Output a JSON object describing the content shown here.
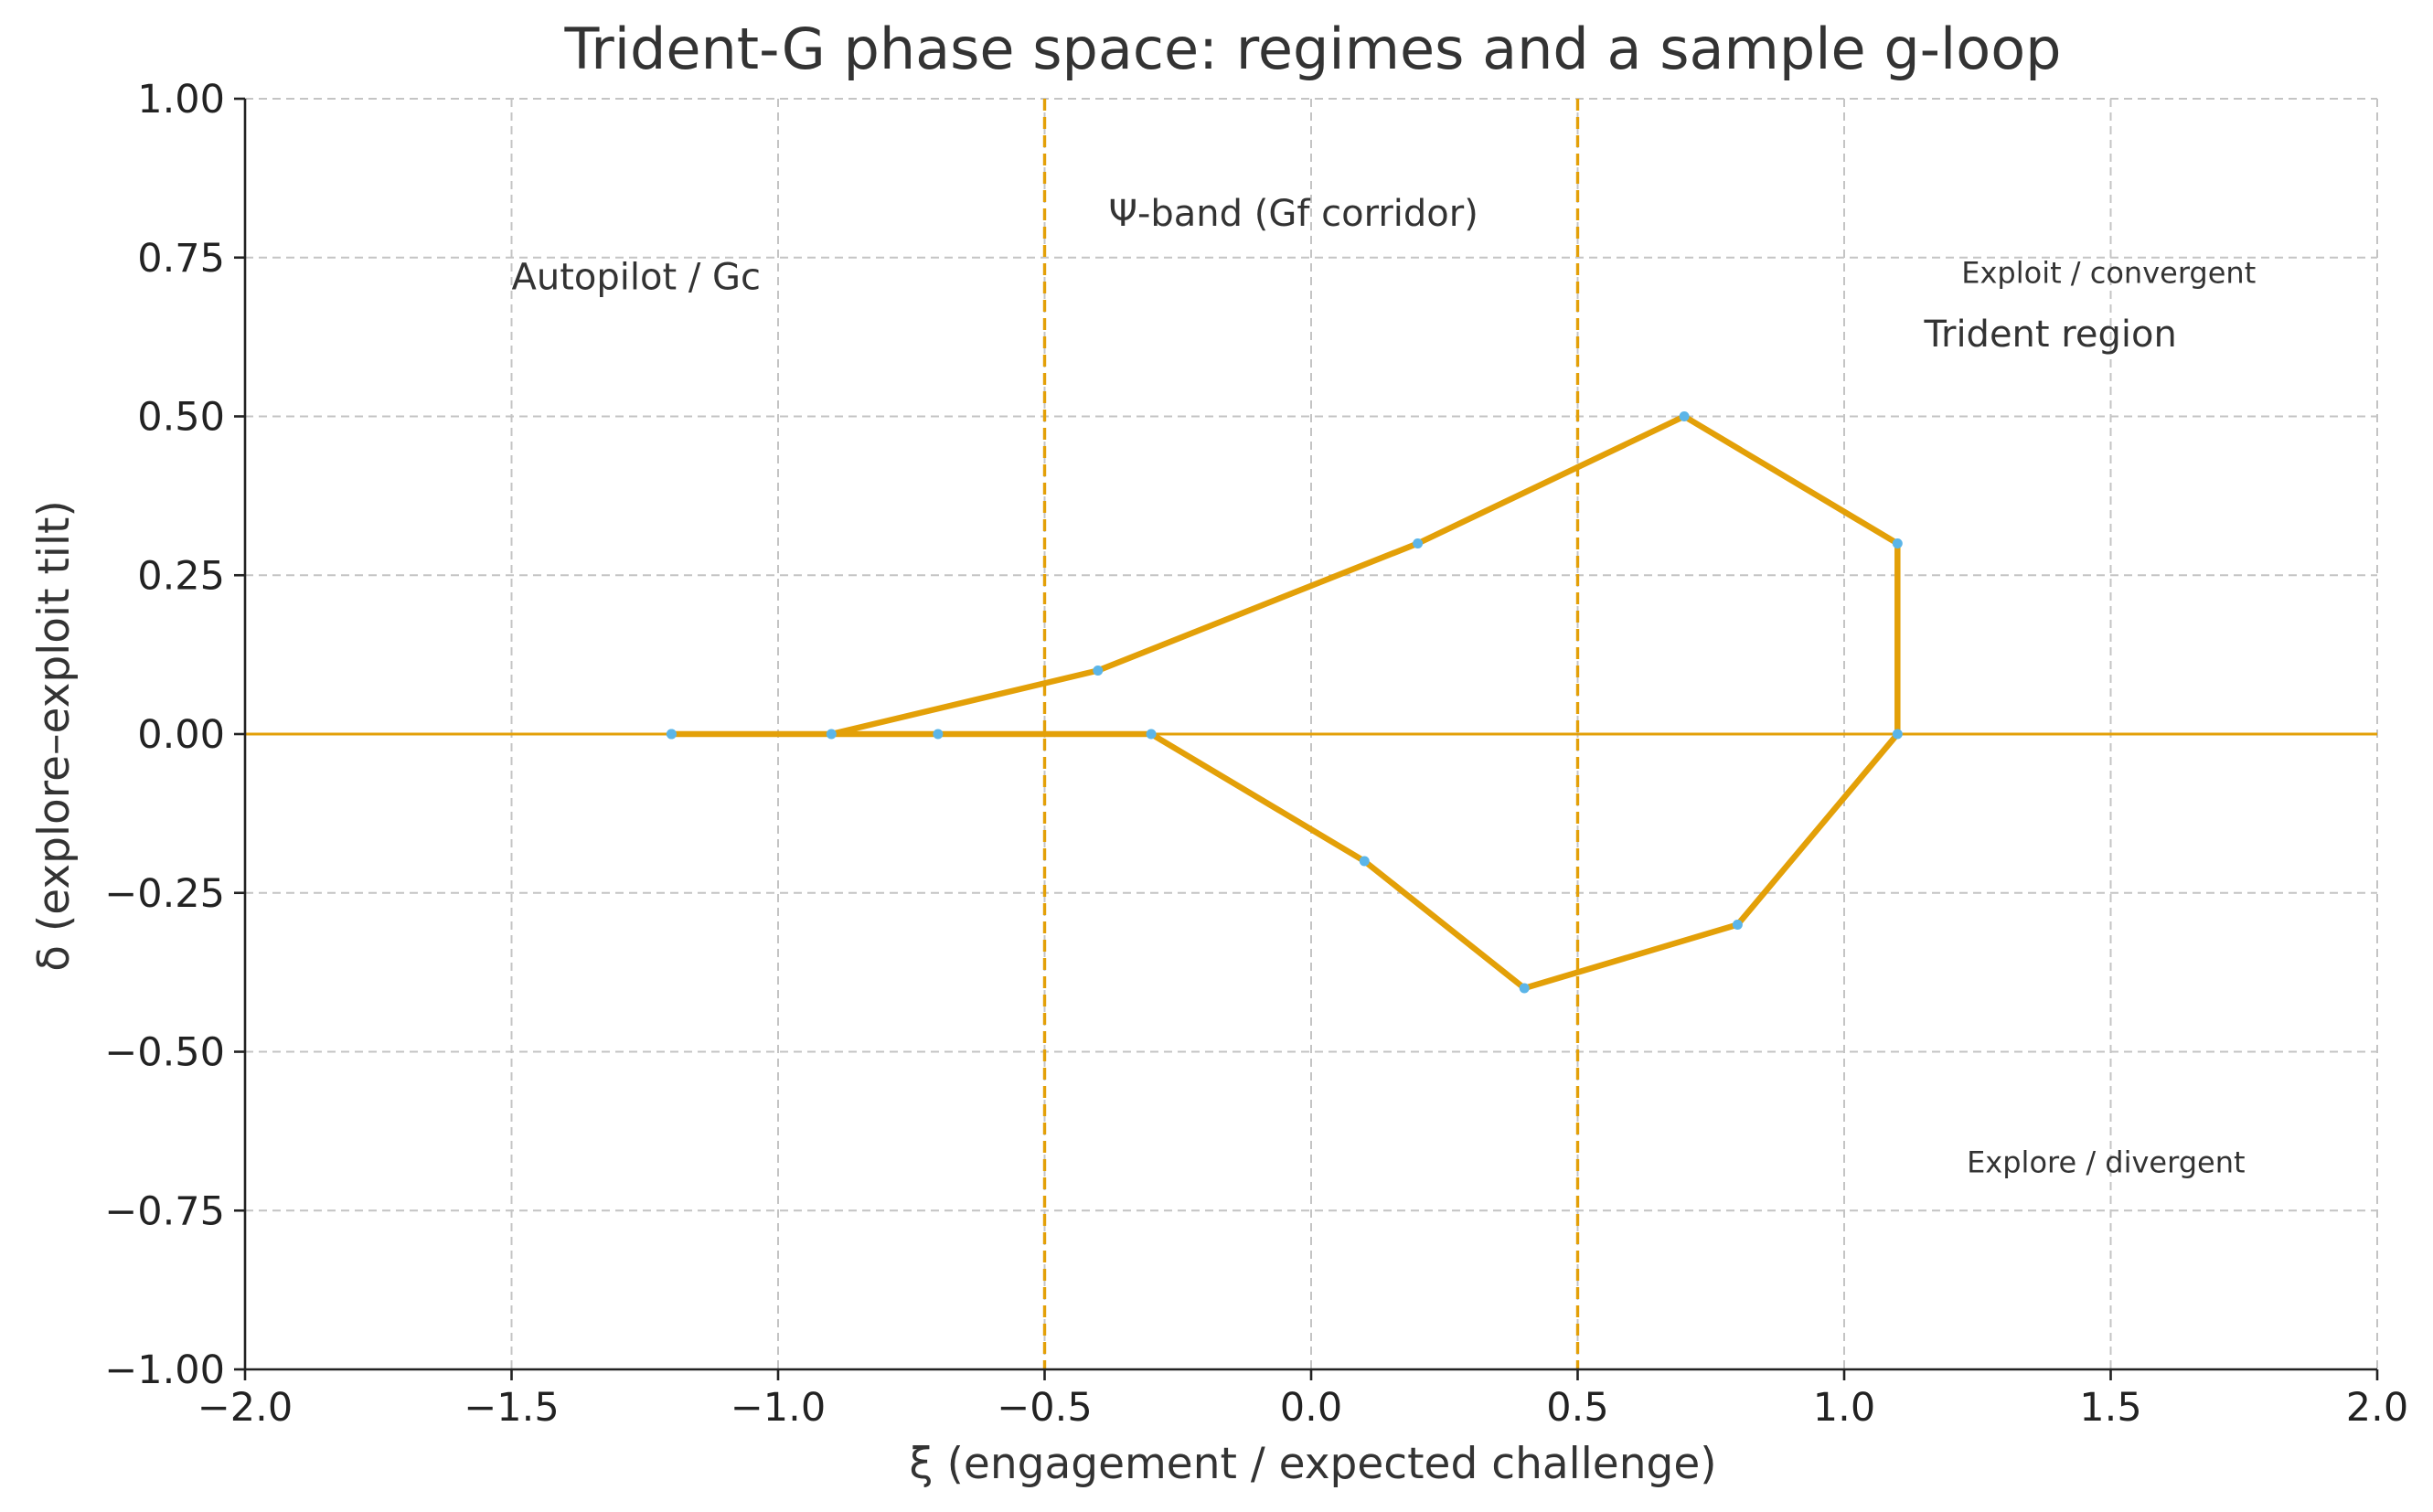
{
  "chart_data": {
    "type": "line",
    "title": "Trident-G phase space: regimes and a sample g-loop",
    "xlabel": "ξ (engagement / expected challenge)",
    "ylabel": "δ (explore–exploit tilt)",
    "xlim": [
      -2.0,
      2.0
    ],
    "ylim": [
      -1.0,
      1.0
    ],
    "xticks": [
      "−2.0",
      "−1.5",
      "−1.0",
      "−0.5",
      "0.0",
      "0.5",
      "1.0",
      "1.5",
      "2.0"
    ],
    "yticks": [
      "−1.00",
      "−0.75",
      "−0.50",
      "−0.25",
      "0.00",
      "0.25",
      "0.50",
      "0.75",
      "1.00"
    ],
    "grid": true,
    "colors": {
      "loop": "#e3a008",
      "points": "#5bb5e8",
      "reference": "#e3a008"
    },
    "reference_lines": {
      "vertical_dashed": [
        -0.5,
        0.5
      ],
      "horizontal_solid": [
        0.0
      ]
    },
    "series": [
      {
        "x": [
          -1.2,
          -0.9,
          -0.4,
          0.2,
          0.7,
          1.1,
          1.1,
          0.8,
          0.4,
          0.1,
          -0.3,
          -0.7,
          -1.2
        ],
        "y": [
          0.0,
          0.0,
          0.1,
          0.3,
          0.5,
          0.3,
          0.0,
          -0.3,
          -0.4,
          -0.2,
          0.0,
          0.0,
          0.0
        ]
      }
    ],
    "annotations": [
      {
        "text": "Ψ-band (Gf corridor)",
        "x": -0.38,
        "y": 0.8
      },
      {
        "text": "Autopilot / Gc",
        "x": -1.5,
        "y": 0.7
      },
      {
        "text": "Exploit / convergent",
        "x": 1.22,
        "y": 0.71
      },
      {
        "text": "Trident region",
        "x": 1.15,
        "y": 0.61
      },
      {
        "text": "Explore / divergent",
        "x": 1.23,
        "y": -0.69
      }
    ]
  }
}
